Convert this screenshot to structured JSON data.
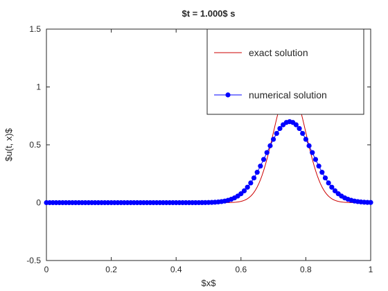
{
  "chart_data": {
    "type": "line",
    "title": "$t = 1.000$ s",
    "xlabel": "$x$",
    "ylabel": "$u(t, x)$",
    "xlim": [
      0,
      1
    ],
    "ylim": [
      -0.5,
      1.5
    ],
    "xticks": [
      "0",
      "0.2",
      "0.4",
      "0.6",
      "0.8",
      "1"
    ],
    "xtick_values": [
      0,
      0.2,
      0.4,
      0.6,
      0.8,
      1
    ],
    "yticks": [
      "-0.5",
      "0",
      "0.5",
      "1",
      "1.5"
    ],
    "ytick_values": [
      -0.5,
      0,
      0.5,
      1,
      1.5
    ],
    "grid": false,
    "legend_position": "top-right",
    "series": [
      {
        "name": "exact solution",
        "color": "#cc0000",
        "marker": "none",
        "curve": {
          "shape": "gaussian",
          "center": 0.75,
          "peak": 1.0,
          "sigma": 0.05
        },
        "x_range": [
          0,
          1
        ],
        "x_step": 0.005
      },
      {
        "name": "numerical solution",
        "color": "#0000ff",
        "marker": "filled-circle",
        "curve": {
          "shape": "gaussian",
          "center": 0.75,
          "peak": 0.7,
          "sigma": 0.0714
        },
        "x_range": [
          0,
          1
        ],
        "x_step": 0.01
      }
    ]
  }
}
